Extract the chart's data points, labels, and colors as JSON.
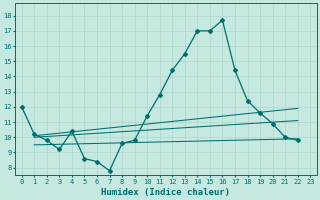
{
  "title": "",
  "xlabel": "Humidex (Indice chaleur)",
  "ylabel": "",
  "xlim": [
    -0.5,
    23.5
  ],
  "ylim": [
    7.5,
    18.8
  ],
  "xticks": [
    0,
    1,
    2,
    3,
    4,
    5,
    6,
    7,
    8,
    9,
    10,
    11,
    12,
    13,
    14,
    15,
    16,
    17,
    18,
    19,
    20,
    21,
    22,
    23
  ],
  "yticks": [
    8,
    9,
    10,
    11,
    12,
    13,
    14,
    15,
    16,
    17,
    18
  ],
  "bg_color": "#c5e8e0",
  "grid_color": "#aed4cc",
  "line_color": "#006e6e",
  "main_x": [
    0,
    1,
    2,
    3,
    4,
    5,
    6,
    7,
    8,
    9,
    10,
    11,
    12,
    13,
    14,
    15,
    16,
    17,
    18,
    19,
    20,
    21,
    22
  ],
  "main_y": [
    12.0,
    10.2,
    9.8,
    9.2,
    10.4,
    8.6,
    8.4,
    7.8,
    9.6,
    9.8,
    11.4,
    12.8,
    14.4,
    15.5,
    17.0,
    17.0,
    17.7,
    14.4,
    12.4,
    11.6,
    10.9,
    10.0,
    9.8
  ],
  "trend1_x": [
    1,
    22
  ],
  "trend1_y": [
    10.1,
    11.9
  ],
  "trend2_x": [
    1,
    22
  ],
  "trend2_y": [
    10.0,
    11.1
  ],
  "trend3_x": [
    1,
    22
  ],
  "trend3_y": [
    9.5,
    9.9
  ],
  "tick_fontsize": 5.0,
  "xlabel_fontsize": 6.5
}
